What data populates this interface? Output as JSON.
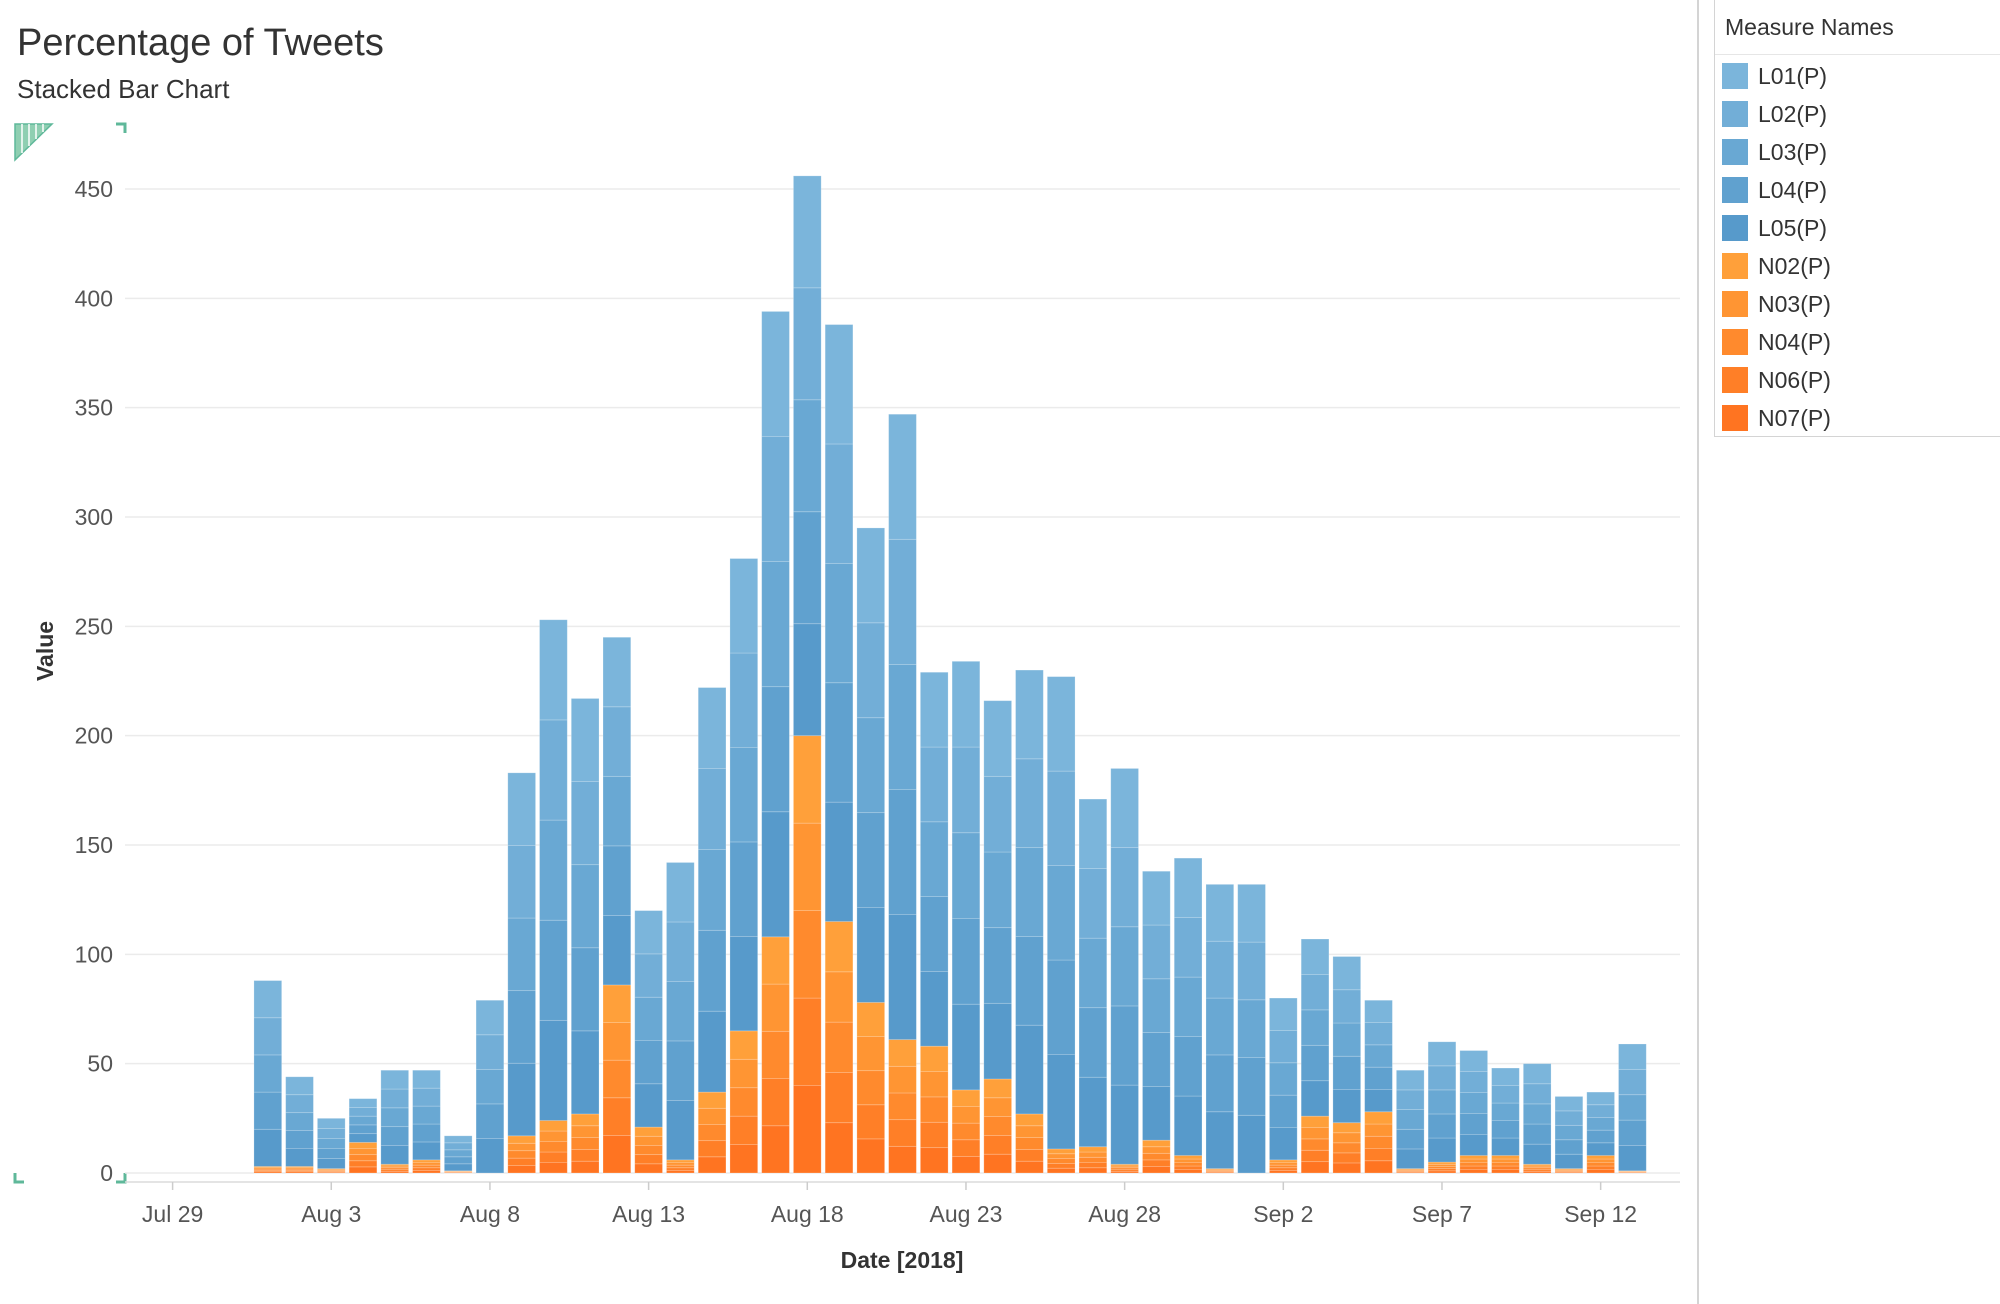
{
  "title": "Percentage of Tweets",
  "subtitle": "Stacked Bar Chart",
  "legend": {
    "title": "Measure Names",
    "items": [
      {
        "label": "L01(P)",
        "color": "#7bb5db"
      },
      {
        "label": "L02(P)",
        "color": "#72aed7"
      },
      {
        "label": "L03(P)",
        "color": "#69a8d3"
      },
      {
        "label": "L04(P)",
        "color": "#60a1cf"
      },
      {
        "label": "L05(P)",
        "color": "#579acb"
      },
      {
        "label": "N02(P)",
        "color": "#ffa03a"
      },
      {
        "label": "N03(P)",
        "color": "#ff9533"
      },
      {
        "label": "N04(P)",
        "color": "#ff8a2d"
      },
      {
        "label": "N06(P)",
        "color": "#ff7f27"
      },
      {
        "label": "N07(P)",
        "color": "#ff7421"
      }
    ]
  },
  "chart_data": {
    "type": "bar",
    "stacked": true,
    "xlabel": "Date [2018]",
    "ylabel": "Value",
    "ylim": [
      0,
      450
    ],
    "yticks": [
      0,
      50,
      100,
      150,
      200,
      250,
      300,
      350,
      400,
      450
    ],
    "xticks": [
      {
        "label": "Jul 29",
        "date": "2018-07-29"
      },
      {
        "label": "Aug 3",
        "date": "2018-08-03"
      },
      {
        "label": "Aug 8",
        "date": "2018-08-08"
      },
      {
        "label": "Aug 13",
        "date": "2018-08-13"
      },
      {
        "label": "Aug 18",
        "date": "2018-08-18"
      },
      {
        "label": "Aug 23",
        "date": "2018-08-23"
      },
      {
        "label": "Aug 28",
        "date": "2018-08-28"
      },
      {
        "label": "Sep 2",
        "date": "2018-09-02"
      },
      {
        "label": "Sep 7",
        "date": "2018-09-07"
      },
      {
        "label": "Sep 12",
        "date": "2018-09-12"
      }
    ],
    "xrange": [
      "2018-07-28",
      "2018-09-15"
    ],
    "dates": [
      "2018-08-01",
      "2018-08-02",
      "2018-08-03",
      "2018-08-04",
      "2018-08-05",
      "2018-08-06",
      "2018-08-07",
      "2018-08-08",
      "2018-08-09",
      "2018-08-10",
      "2018-08-11",
      "2018-08-12",
      "2018-08-13",
      "2018-08-14",
      "2018-08-15",
      "2018-08-16",
      "2018-08-17",
      "2018-08-18",
      "2018-08-19",
      "2018-08-20",
      "2018-08-21",
      "2018-08-22",
      "2018-08-23",
      "2018-08-24",
      "2018-08-25",
      "2018-08-26",
      "2018-08-27",
      "2018-08-28",
      "2018-08-29",
      "2018-08-30",
      "2018-08-31",
      "2018-09-01",
      "2018-09-02",
      "2018-09-03",
      "2018-09-04",
      "2018-09-05",
      "2018-09-06",
      "2018-09-07",
      "2018-09-08",
      "2018-09-09",
      "2018-09-10",
      "2018-09-11",
      "2018-09-12",
      "2018-09-13"
    ],
    "orange_totals": [
      3,
      3,
      2,
      14,
      4,
      6,
      1,
      0,
      17,
      24,
      27,
      86,
      21,
      6,
      37,
      65,
      108,
      200,
      115,
      78,
      61,
      58,
      38,
      43,
      27,
      11,
      12,
      4,
      15,
      8,
      2,
      0,
      6,
      26,
      23,
      28,
      2,
      5,
      8,
      8,
      4,
      2,
      8,
      1
    ],
    "totals": [
      88,
      44,
      25,
      34,
      47,
      47,
      17,
      79,
      183,
      253,
      217,
      245,
      120,
      142,
      222,
      281,
      394,
      456,
      388,
      295,
      347,
      229,
      234,
      216,
      230,
      227,
      171,
      185,
      138,
      144,
      132,
      132,
      80,
      107,
      99,
      79,
      47,
      60,
      56,
      48,
      50,
      35,
      37,
      59
    ]
  }
}
